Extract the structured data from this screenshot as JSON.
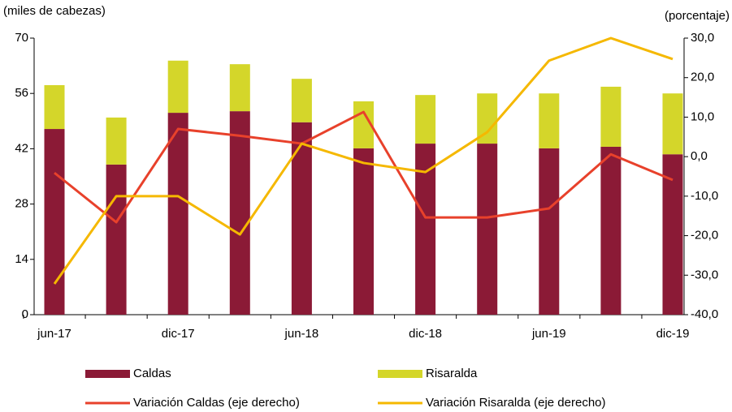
{
  "chart_data": {
    "type": "bar-line",
    "y_label": "(miles de cabezas)",
    "y2_label": "(porcentaje)",
    "categories": [
      "jun-17",
      null,
      "dic-17",
      null,
      "jun-18",
      null,
      "dic-18",
      null,
      "jun-19",
      null,
      "dic-19"
    ],
    "series": [
      {
        "name": "Caldas",
        "type": "bar",
        "color": "#8b1a36",
        "values": [
          47.0,
          38.0,
          51.1,
          51.5,
          48.7,
          42.1,
          43.3,
          43.3,
          42.1,
          42.5,
          40.6
        ]
      },
      {
        "name": "Risaralda",
        "type": "bar",
        "color": "#d4d62a",
        "values": [
          11.1,
          11.9,
          13.2,
          11.9,
          11.0,
          11.9,
          12.3,
          12.7,
          13.9,
          15.2,
          15.4
        ]
      },
      {
        "name": "Variación Caldas (eje derecho)",
        "type": "line",
        "axis": "y2",
        "color": "#e8412b",
        "values": [
          -4.1,
          -16.6,
          7.0,
          5.3,
          3.3,
          11.3,
          -15.4,
          -15.4,
          -13.1,
          0.6,
          -5.9
        ]
      },
      {
        "name": "Variación Risaralda (eje derecho)",
        "type": "line",
        "axis": "y2",
        "color": "#f5b800",
        "values": [
          -32.2,
          -10.0,
          -10.0,
          -19.7,
          3.3,
          -1.6,
          -3.9,
          6.2,
          24.3,
          30.0,
          24.7
        ]
      }
    ],
    "stacked": true,
    "ylim": [
      0,
      70
    ],
    "yticks": [
      0,
      14,
      28,
      42,
      56,
      70
    ],
    "y2lim": [
      -40,
      30
    ],
    "y2ticks": [
      {
        "value": -40,
        "label": "-40,0"
      },
      {
        "value": -30,
        "label": "-30,0"
      },
      {
        "value": -20,
        "label": "-20,0"
      },
      {
        "value": -10,
        "label": "-10,0"
      },
      {
        "value": 0,
        "label": "0,0"
      },
      {
        "value": 10,
        "label": "10,0"
      },
      {
        "value": 20,
        "label": "20,0"
      },
      {
        "value": 30,
        "label": "30,0"
      }
    ]
  }
}
